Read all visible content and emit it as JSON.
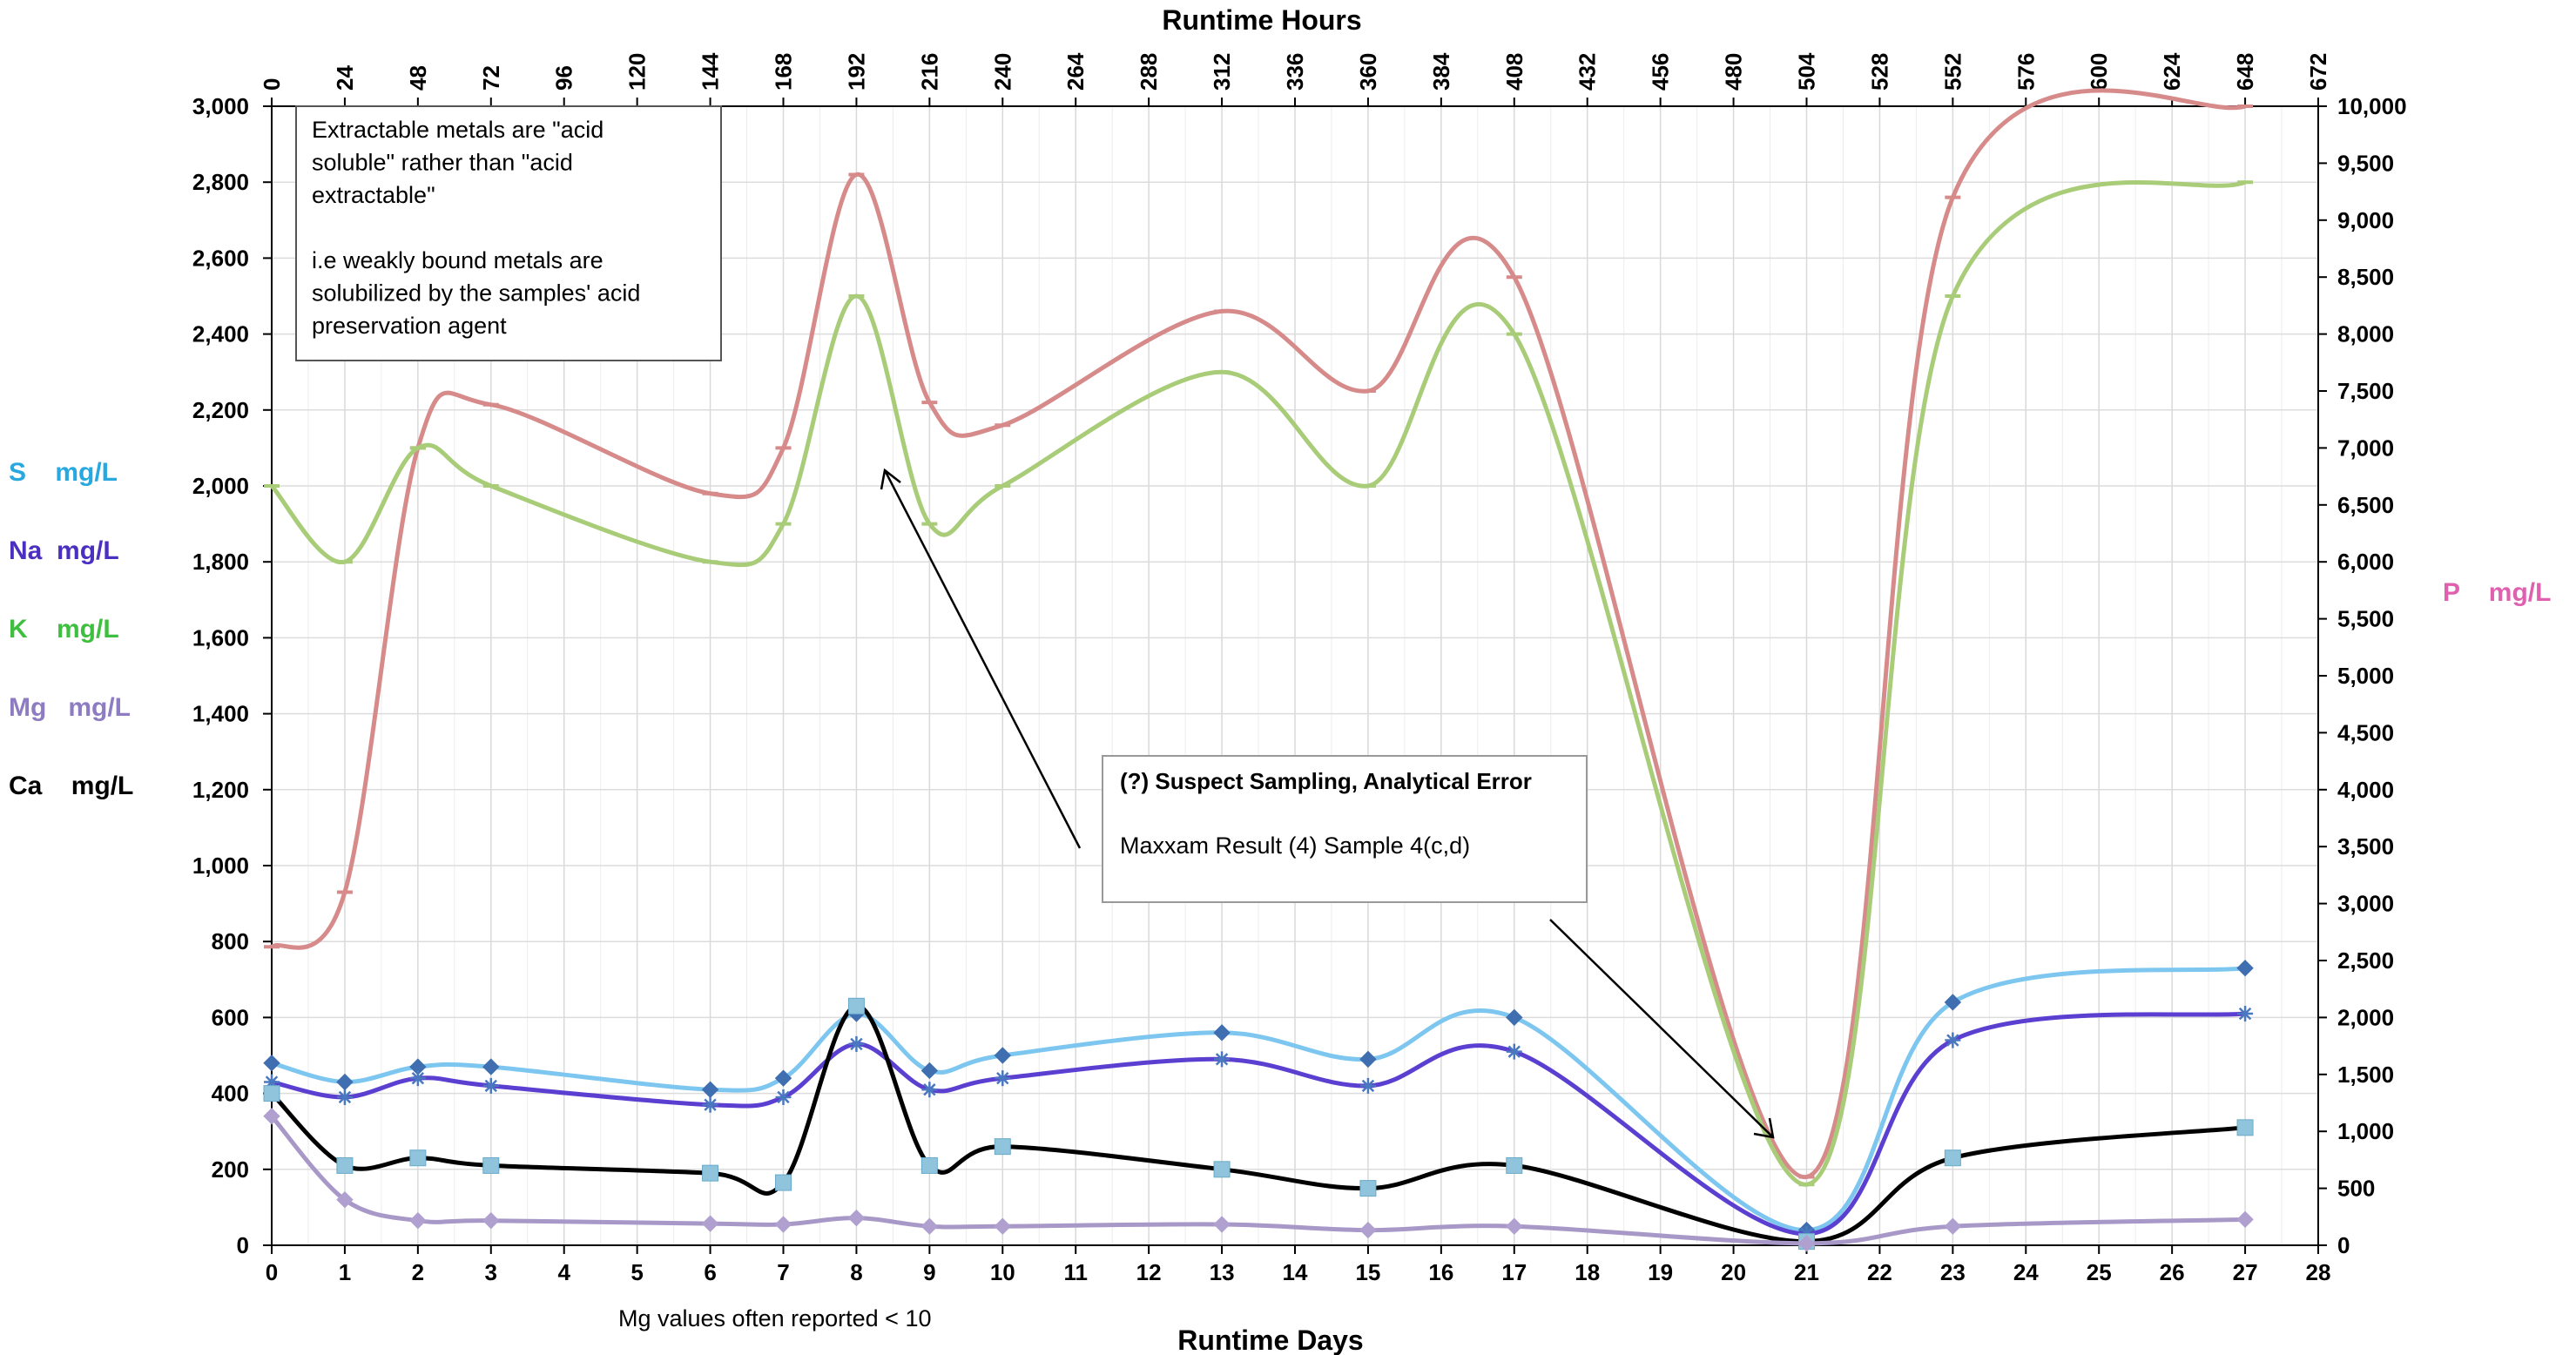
{
  "chart_data": {
    "type": "line",
    "title": "",
    "x_bottom": {
      "label": "Runtime  Days",
      "range": [
        0,
        28
      ],
      "ticks": [
        0,
        1,
        2,
        3,
        4,
        5,
        6,
        7,
        8,
        9,
        10,
        11,
        12,
        13,
        14,
        15,
        16,
        17,
        18,
        19,
        20,
        21,
        22,
        23,
        24,
        25,
        26,
        27,
        28
      ]
    },
    "x_top": {
      "label": "Runtime Hours",
      "range": [
        0,
        672
      ],
      "ticks": [
        0,
        24,
        48,
        72,
        96,
        120,
        144,
        168,
        192,
        216,
        240,
        264,
        288,
        312,
        336,
        360,
        384,
        408,
        432,
        456,
        480,
        504,
        528,
        552,
        576,
        600,
        624,
        648,
        672
      ]
    },
    "y_left": {
      "range": [
        0,
        3000
      ],
      "ticks": [
        0,
        200,
        400,
        600,
        800,
        1000,
        1200,
        1400,
        1600,
        1800,
        2000,
        2200,
        2400,
        2600,
        2800,
        3000
      ]
    },
    "y_right": {
      "range": [
        0,
        10000
      ],
      "ticks": [
        0,
        500,
        1000,
        1500,
        2000,
        2500,
        3000,
        3500,
        4000,
        4500,
        5000,
        5500,
        6000,
        6500,
        7000,
        7500,
        8000,
        8500,
        9000,
        9500,
        10000
      ]
    },
    "grid": true,
    "left_labels": [
      {
        "text": "S    mg/L",
        "color": "#29a8e0"
      },
      {
        "text": "Na  mg/L",
        "color": "#4b2fc0"
      },
      {
        "text": "K    mg/L",
        "color": "#3fbf3f"
      },
      {
        "text": "Mg   mg/L",
        "color": "#8e7cc3"
      },
      {
        "text": "Ca    mg/L",
        "color": "#000000"
      }
    ],
    "right_label": {
      "text": "P    mg/L",
      "color": "#e060b0"
    },
    "series": [
      {
        "key": "P",
        "axis": "right",
        "color": "#d68a8a",
        "marker": "dash",
        "x": [
          0,
          1,
          2,
          3,
          6,
          7,
          8,
          9,
          10,
          13,
          15,
          17,
          21,
          23,
          27
        ],
        "y": [
          2620,
          3100,
          7000,
          7380,
          6600,
          7000,
          9400,
          7400,
          7200,
          8200,
          7500,
          8500,
          600,
          9200,
          10000
        ]
      },
      {
        "key": "K",
        "axis": "left",
        "color": "#a8cc78",
        "marker": "dash",
        "x": [
          0,
          1,
          2,
          3,
          6,
          7,
          8,
          9,
          10,
          13,
          15,
          17,
          21,
          23,
          27
        ],
        "y": [
          2000,
          1800,
          2100,
          2000,
          1800,
          1900,
          2500,
          1900,
          2000,
          2300,
          2000,
          2400,
          160,
          2500,
          2800
        ]
      },
      {
        "key": "S",
        "axis": "left",
        "color": "#7cc6f0",
        "marker": "diamond",
        "x": [
          0,
          1,
          2,
          3,
          6,
          7,
          8,
          9,
          10,
          13,
          15,
          17,
          21,
          23,
          27
        ],
        "y": [
          480,
          430,
          470,
          470,
          410,
          440,
          610,
          460,
          500,
          560,
          490,
          600,
          40,
          640,
          730
        ]
      },
      {
        "key": "Na",
        "axis": "left",
        "color": "#5b3fd0",
        "marker": "star",
        "x": [
          0,
          1,
          2,
          3,
          6,
          7,
          8,
          9,
          10,
          13,
          15,
          17,
          21,
          23,
          27
        ],
        "y": [
          430,
          390,
          440,
          420,
          370,
          390,
          530,
          410,
          440,
          490,
          420,
          510,
          30,
          540,
          610
        ]
      },
      {
        "key": "Ca",
        "axis": "left",
        "color": "#000000",
        "marker": "square",
        "x": [
          0,
          1,
          2,
          3,
          6,
          7,
          8,
          9,
          10,
          13,
          15,
          17,
          21,
          23,
          27
        ],
        "y": [
          400,
          210,
          230,
          210,
          190,
          165,
          630,
          210,
          260,
          200,
          150,
          210,
          10,
          230,
          310
        ]
      },
      {
        "key": "Mg",
        "axis": "left",
        "color": "#a898c8",
        "marker": "diamond",
        "x": [
          0,
          1,
          2,
          3,
          6,
          7,
          8,
          9,
          10,
          13,
          15,
          17,
          21,
          23,
          27
        ],
        "y": [
          340,
          120,
          65,
          65,
          57,
          55,
          72,
          50,
          50,
          55,
          40,
          50,
          5,
          50,
          68
        ]
      }
    ],
    "annotations": [
      {
        "key": "box1",
        "lines": [
          "Extractable metals are \"acid",
          "soluble\" rather than \"acid",
          "extractable\"",
          "",
          "i.e weakly bound metals are",
          "solubilized by the samples'  acid",
          "preservation agent"
        ]
      },
      {
        "key": "box2",
        "lines": [
          "(?) Suspect Sampling, Analytical Error",
          "",
          "Maxxam Result (4) Sample 4(c,d)"
        ]
      }
    ],
    "footnote": "Mg values often reported < 10"
  }
}
